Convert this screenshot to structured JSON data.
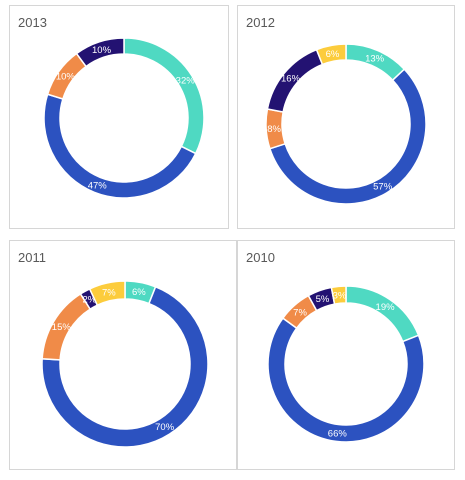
{
  "chart_data": [
    {
      "type": "pie",
      "variant": "donut",
      "title": "2013",
      "slices": [
        {
          "value": 32,
          "label": "32%",
          "color": "#4fd9c2"
        },
        {
          "value": 47,
          "label": "47%",
          "color": "#2c52c0"
        },
        {
          "value": 0,
          "label": "",
          "color": "#fccc3c"
        },
        {
          "value": 10,
          "label": "10%",
          "color": "#f08b48"
        },
        {
          "value": 10,
          "label": "10%",
          "color": "#231272"
        }
      ]
    },
    {
      "type": "pie",
      "variant": "donut",
      "title": "2012",
      "slices": [
        {
          "value": 13,
          "label": "13%",
          "color": "#4fd9c2"
        },
        {
          "value": 57,
          "label": "57%",
          "color": "#2c52c0"
        },
        {
          "value": 8,
          "label": "8%",
          "color": "#f08b48"
        },
        {
          "value": 16,
          "label": "16%",
          "color": "#231272"
        },
        {
          "value": 6,
          "label": "6%",
          "color": "#fccc3c"
        }
      ]
    },
    {
      "type": "pie",
      "variant": "donut",
      "title": "2011",
      "slices": [
        {
          "value": 6,
          "label": "6%",
          "color": "#4fd9c2"
        },
        {
          "value": 70,
          "label": "70%",
          "color": "#2c52c0"
        },
        {
          "value": 15,
          "label": "15%",
          "color": "#f08b48"
        },
        {
          "value": 2,
          "label": "2%",
          "color": "#231272"
        },
        {
          "value": 7,
          "label": "7%",
          "color": "#fccc3c"
        }
      ]
    },
    {
      "type": "pie",
      "variant": "donut",
      "title": "2010",
      "slices": [
        {
          "value": 19,
          "label": "19%",
          "color": "#4fd9c2"
        },
        {
          "value": 66,
          "label": "66%",
          "color": "#2c52c0"
        },
        {
          "value": 7,
          "label": "7%",
          "color": "#f08b48"
        },
        {
          "value": 5,
          "label": "5%",
          "color": "#231272"
        },
        {
          "value": 3,
          "label": "3%",
          "color": "#fccc3c"
        }
      ]
    }
  ]
}
